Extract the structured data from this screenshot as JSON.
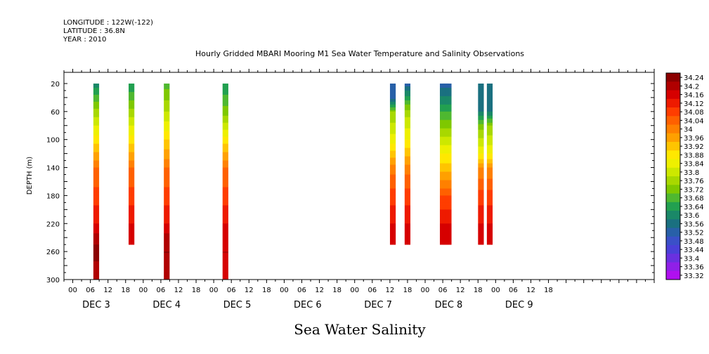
{
  "header": {
    "longitude": "LONGITUDE : 122W(-122)",
    "latitude": "LATITUDE : 36.8N",
    "year": "YEAR : 2010",
    "title": "Hourly Gridded MBARI Mooring M1 Sea Water Temperature and Salinity Observations"
  },
  "footer_title": "Sea Water Salinity",
  "chart_data": {
    "type": "heatmap",
    "title": "Hourly Gridded MBARI Mooring M1 Sea Water Temperature and Salinity Observations",
    "xlabel": "",
    "ylabel": "DEPTH (m)",
    "x_day_labels": [
      "DEC 3",
      "DEC 4",
      "DEC 5",
      "DEC 6",
      "DEC 7",
      "DEC 8",
      "DEC 9"
    ],
    "x_hour_ticks": [
      "00",
      "06",
      "12",
      "18",
      "00",
      "06",
      "12",
      "18",
      "00",
      "06",
      "12",
      "18",
      "00",
      "06",
      "12",
      "18",
      "00",
      "06",
      "12",
      "18",
      "00",
      "06",
      "12",
      "18",
      "00",
      "06",
      "12",
      "18"
    ],
    "y_ticks": [
      20,
      60,
      100,
      140,
      180,
      220,
      260,
      300
    ],
    "ylim": [
      300,
      4
    ],
    "xlim_hours": [
      -3,
      198
    ],
    "colorbar": {
      "labels": [
        "34.24",
        "34.2",
        "34.16",
        "34.12",
        "34.08",
        "34.04",
        "34",
        "33.96",
        "33.92",
        "33.88",
        "33.84",
        "33.8",
        "33.76",
        "33.72",
        "33.68",
        "33.64",
        "33.6",
        "33.56",
        "33.52",
        "33.48",
        "33.44",
        "33.4",
        "33.36",
        "33.32"
      ],
      "colors": [
        "#8b0000",
        "#b00000",
        "#d60000",
        "#ee1a00",
        "#ff3d00",
        "#ff6000",
        "#ff8000",
        "#ffa000",
        "#ffc400",
        "#ffe800",
        "#eef000",
        "#cde800",
        "#a8d800",
        "#7fc800",
        "#4fb830",
        "#22a050",
        "#1a8868",
        "#1a7080",
        "#2860a8",
        "#3a50c8",
        "#4a40d8",
        "#6a30e0",
        "#9020e8",
        "#b010f0"
      ]
    },
    "series": [
      {
        "hour": 8,
        "values": {
          "20": 33.58,
          "60": 33.74,
          "100": 33.86,
          "140": 34.0,
          "180": 34.06,
          "220": 34.12,
          "240": 34.18,
          "260": 34.22,
          "300": 34.16
        }
      },
      {
        "hour": 20,
        "values": {
          "20": 33.6,
          "60": 33.74,
          "100": 33.86,
          "140": 34.0,
          "180": 34.06,
          "220": 34.12,
          "250": 34.14
        }
      },
      {
        "hour": 32,
        "values": {
          "20": 33.66,
          "60": 33.76,
          "100": 33.88,
          "140": 34.0,
          "180": 34.06,
          "220": 34.12,
          "240": 34.18,
          "260": 34.2,
          "300": 34.16
        }
      },
      {
        "hour": 52,
        "values": {
          "20": 33.6,
          "60": 33.7,
          "100": 33.86,
          "140": 34.0,
          "180": 34.06,
          "220": 34.12,
          "240": 34.14,
          "260": 34.16,
          "300": 34.14
        }
      },
      {
        "hour": 109,
        "values": {
          "20": 33.48,
          "40": 33.5,
          "60": 33.72,
          "100": 33.82,
          "140": 33.98,
          "180": 34.06,
          "220": 34.12,
          "250": 34.14
        }
      },
      {
        "hour": 114,
        "values": {
          "20": 33.5,
          "40": 33.62,
          "60": 33.74,
          "100": 33.84,
          "140": 33.98,
          "180": 34.06,
          "220": 34.12,
          "250": 34.14
        }
      },
      {
        "hour": 126,
        "values": {
          "20": 33.5,
          "60": 33.64,
          "100": 33.78,
          "140": 33.9,
          "180": 34.04,
          "220": 34.12,
          "250": 34.14
        }
      },
      {
        "hour": 127,
        "values": {
          "20": 33.5,
          "60": 33.64,
          "100": 33.78,
          "140": 33.9,
          "180": 34.04,
          "220": 34.12,
          "250": 34.14
        }
      },
      {
        "hour": 128,
        "values": {
          "20": 33.5,
          "60": 33.64,
          "100": 33.78,
          "140": 33.9,
          "180": 34.04,
          "220": 34.12,
          "250": 34.14
        }
      },
      {
        "hour": 139,
        "values": {
          "20": 33.52,
          "60": 33.56,
          "80": 33.7,
          "120": 33.84,
          "140": 33.96,
          "180": 34.06,
          "220": 34.12,
          "250": 34.14
        }
      },
      {
        "hour": 142,
        "values": {
          "20": 33.52,
          "60": 33.56,
          "80": 33.72,
          "120": 33.84,
          "140": 33.96,
          "180": 34.06,
          "220": 34.12,
          "250": 34.14
        }
      }
    ]
  }
}
